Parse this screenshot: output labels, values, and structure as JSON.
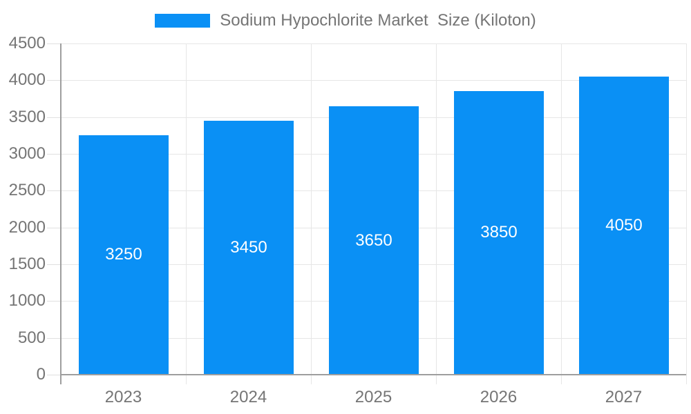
{
  "legend": {
    "label": "Sodium Hypochlorite Market  Size (Kiloton)"
  },
  "chart_data": {
    "type": "bar",
    "title": "Sodium Hypochlorite Market  Size (Kiloton)",
    "categories": [
      "2023",
      "2024",
      "2025",
      "2026",
      "2027"
    ],
    "series": [
      {
        "name": "Sodium Hypochlorite Market  Size (Kiloton)",
        "values": [
          3250,
          3450,
          3650,
          3850,
          4050
        ]
      }
    ],
    "data_labels": [
      "3250",
      "3450",
      "3650",
      "3850",
      "4050"
    ],
    "xlabel": "",
    "ylabel": "",
    "ylim": [
      0,
      4500
    ],
    "ytick_step": 500,
    "yticks": [
      0,
      500,
      1000,
      1500,
      2000,
      2500,
      3000,
      3500,
      4000,
      4500
    ],
    "grid": true,
    "legend_position": "top-center"
  },
  "colors": {
    "bar": "#0a90f5",
    "axis_text": "#757575",
    "value_text": "#ffffff",
    "gridline": "#e6e6e6",
    "axis_line": "#9e9e9e",
    "background": "#ffffff"
  }
}
